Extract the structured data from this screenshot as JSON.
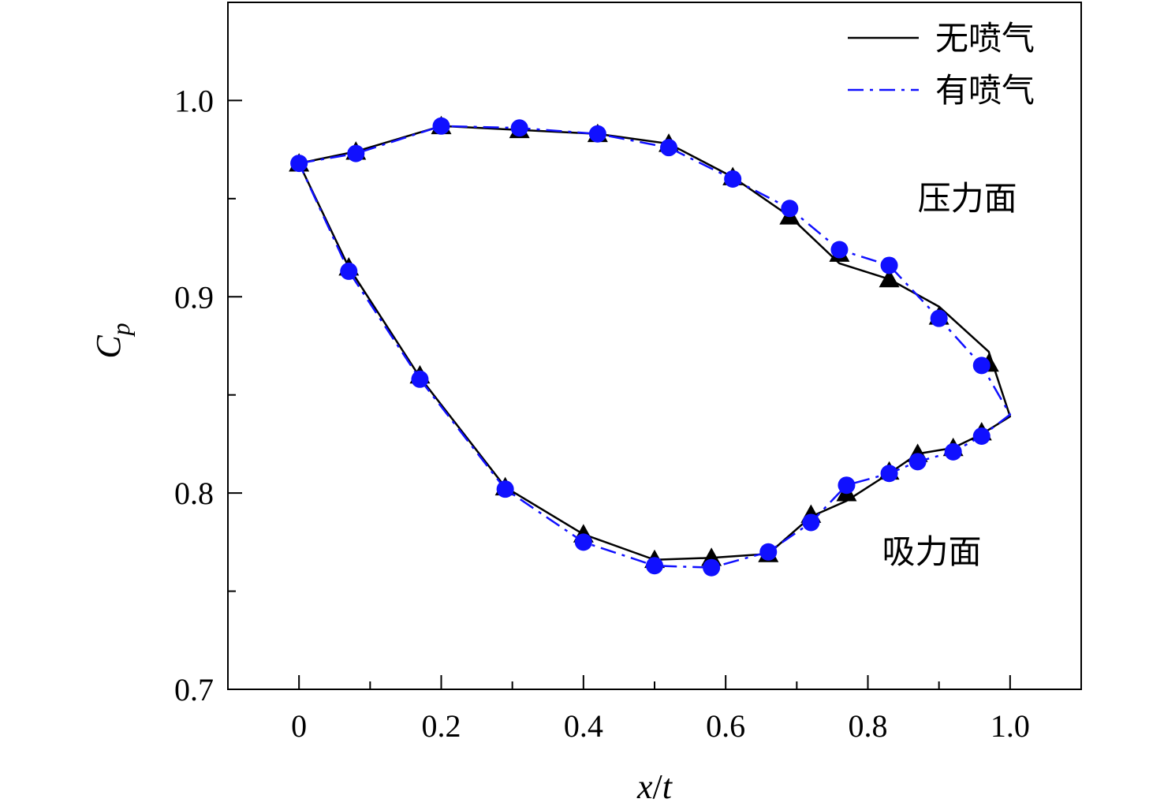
{
  "chart_data": {
    "type": "line",
    "xlabel_main": "x",
    "xlabel_sep": "/",
    "xlabel_sub": "t",
    "ylabel_main": "C",
    "ylabel_sub": "p",
    "xlim": [
      -0.1,
      1.1
    ],
    "ylim": [
      0.7,
      1.05
    ],
    "x_ticks": [
      0,
      0.2,
      0.4,
      0.6,
      0.8,
      1.0
    ],
    "x_tick_labels": [
      "0",
      "0.2",
      "0.4",
      "0.6",
      "0.8",
      "1.0"
    ],
    "x_minor_ticks": [
      -0.1,
      0.1,
      0.3,
      0.5,
      0.7,
      0.9,
      1.1
    ],
    "y_ticks": [
      0.7,
      0.8,
      0.9,
      1.0
    ],
    "y_tick_labels": [
      "0.7",
      "0.8",
      "0.9",
      "1.0"
    ],
    "y_minor_ticks": [
      0.75,
      0.85,
      0.95
    ],
    "grid": false,
    "legend_position": "top-right",
    "annotations": [
      {
        "text": "压力面",
        "x": 0.87,
        "y": 0.95
      },
      {
        "text": "吸力面",
        "x": 0.82,
        "y": 0.77
      }
    ],
    "series": [
      {
        "name": "无喷气",
        "color": "#000000",
        "line_style": "solid",
        "marker": "triangle",
        "x": [
          0.0,
          0.08,
          0.2,
          0.31,
          0.42,
          0.52,
          0.61,
          0.69,
          0.76,
          0.83,
          0.9,
          0.97,
          1.0,
          0.96,
          0.92,
          0.87,
          0.83,
          0.77,
          0.72,
          0.66,
          0.58,
          0.5,
          0.4,
          0.29,
          0.17,
          0.07,
          0.0
        ],
        "y": [
          0.968,
          0.974,
          0.987,
          0.985,
          0.983,
          0.978,
          0.961,
          0.941,
          0.917,
          0.909,
          0.895,
          0.872,
          0.839,
          0.83,
          0.823,
          0.82,
          0.81,
          0.796,
          0.788,
          0.769,
          0.767,
          0.766,
          0.779,
          0.803,
          0.859,
          0.915,
          0.968
        ],
        "marker_x": [
          0.0,
          0.08,
          0.2,
          0.31,
          0.42,
          0.52,
          0.61,
          0.69,
          0.76,
          0.83,
          0.9,
          0.97,
          0.96,
          0.92,
          0.87,
          0.83,
          0.77,
          0.72,
          0.66,
          0.58,
          0.5,
          0.4,
          0.29,
          0.17,
          0.07
        ],
        "marker_y": [
          0.968,
          0.974,
          0.987,
          0.985,
          0.983,
          0.978,
          0.961,
          0.941,
          0.922,
          0.909,
          0.89,
          0.866,
          0.831,
          0.823,
          0.82,
          0.811,
          0.8,
          0.789,
          0.769,
          0.767,
          0.766,
          0.779,
          0.803,
          0.86,
          0.915
        ]
      },
      {
        "name": "有喷气",
        "color": "#1010ff",
        "line_style": "dashdot",
        "marker": "circle",
        "x": [
          0.0,
          0.08,
          0.2,
          0.31,
          0.42,
          0.52,
          0.61,
          0.69,
          0.76,
          0.83,
          0.9,
          0.96,
          1.0,
          0.96,
          0.92,
          0.87,
          0.83,
          0.77,
          0.72,
          0.66,
          0.58,
          0.5,
          0.4,
          0.29,
          0.17,
          0.07,
          0.0
        ],
        "y": [
          0.968,
          0.973,
          0.987,
          0.986,
          0.983,
          0.976,
          0.96,
          0.945,
          0.924,
          0.916,
          0.889,
          0.865,
          0.84,
          0.829,
          0.821,
          0.816,
          0.81,
          0.804,
          0.785,
          0.77,
          0.762,
          0.763,
          0.775,
          0.802,
          0.858,
          0.913,
          0.968
        ],
        "marker_x": [
          0.0,
          0.08,
          0.2,
          0.31,
          0.42,
          0.52,
          0.61,
          0.69,
          0.76,
          0.83,
          0.9,
          0.96,
          0.96,
          0.92,
          0.87,
          0.83,
          0.77,
          0.72,
          0.66,
          0.58,
          0.5,
          0.4,
          0.29,
          0.17,
          0.07
        ],
        "marker_y": [
          0.968,
          0.973,
          0.987,
          0.986,
          0.983,
          0.976,
          0.96,
          0.945,
          0.924,
          0.916,
          0.889,
          0.865,
          0.829,
          0.821,
          0.816,
          0.81,
          0.804,
          0.785,
          0.77,
          0.762,
          0.763,
          0.775,
          0.802,
          0.858,
          0.913
        ]
      }
    ]
  }
}
